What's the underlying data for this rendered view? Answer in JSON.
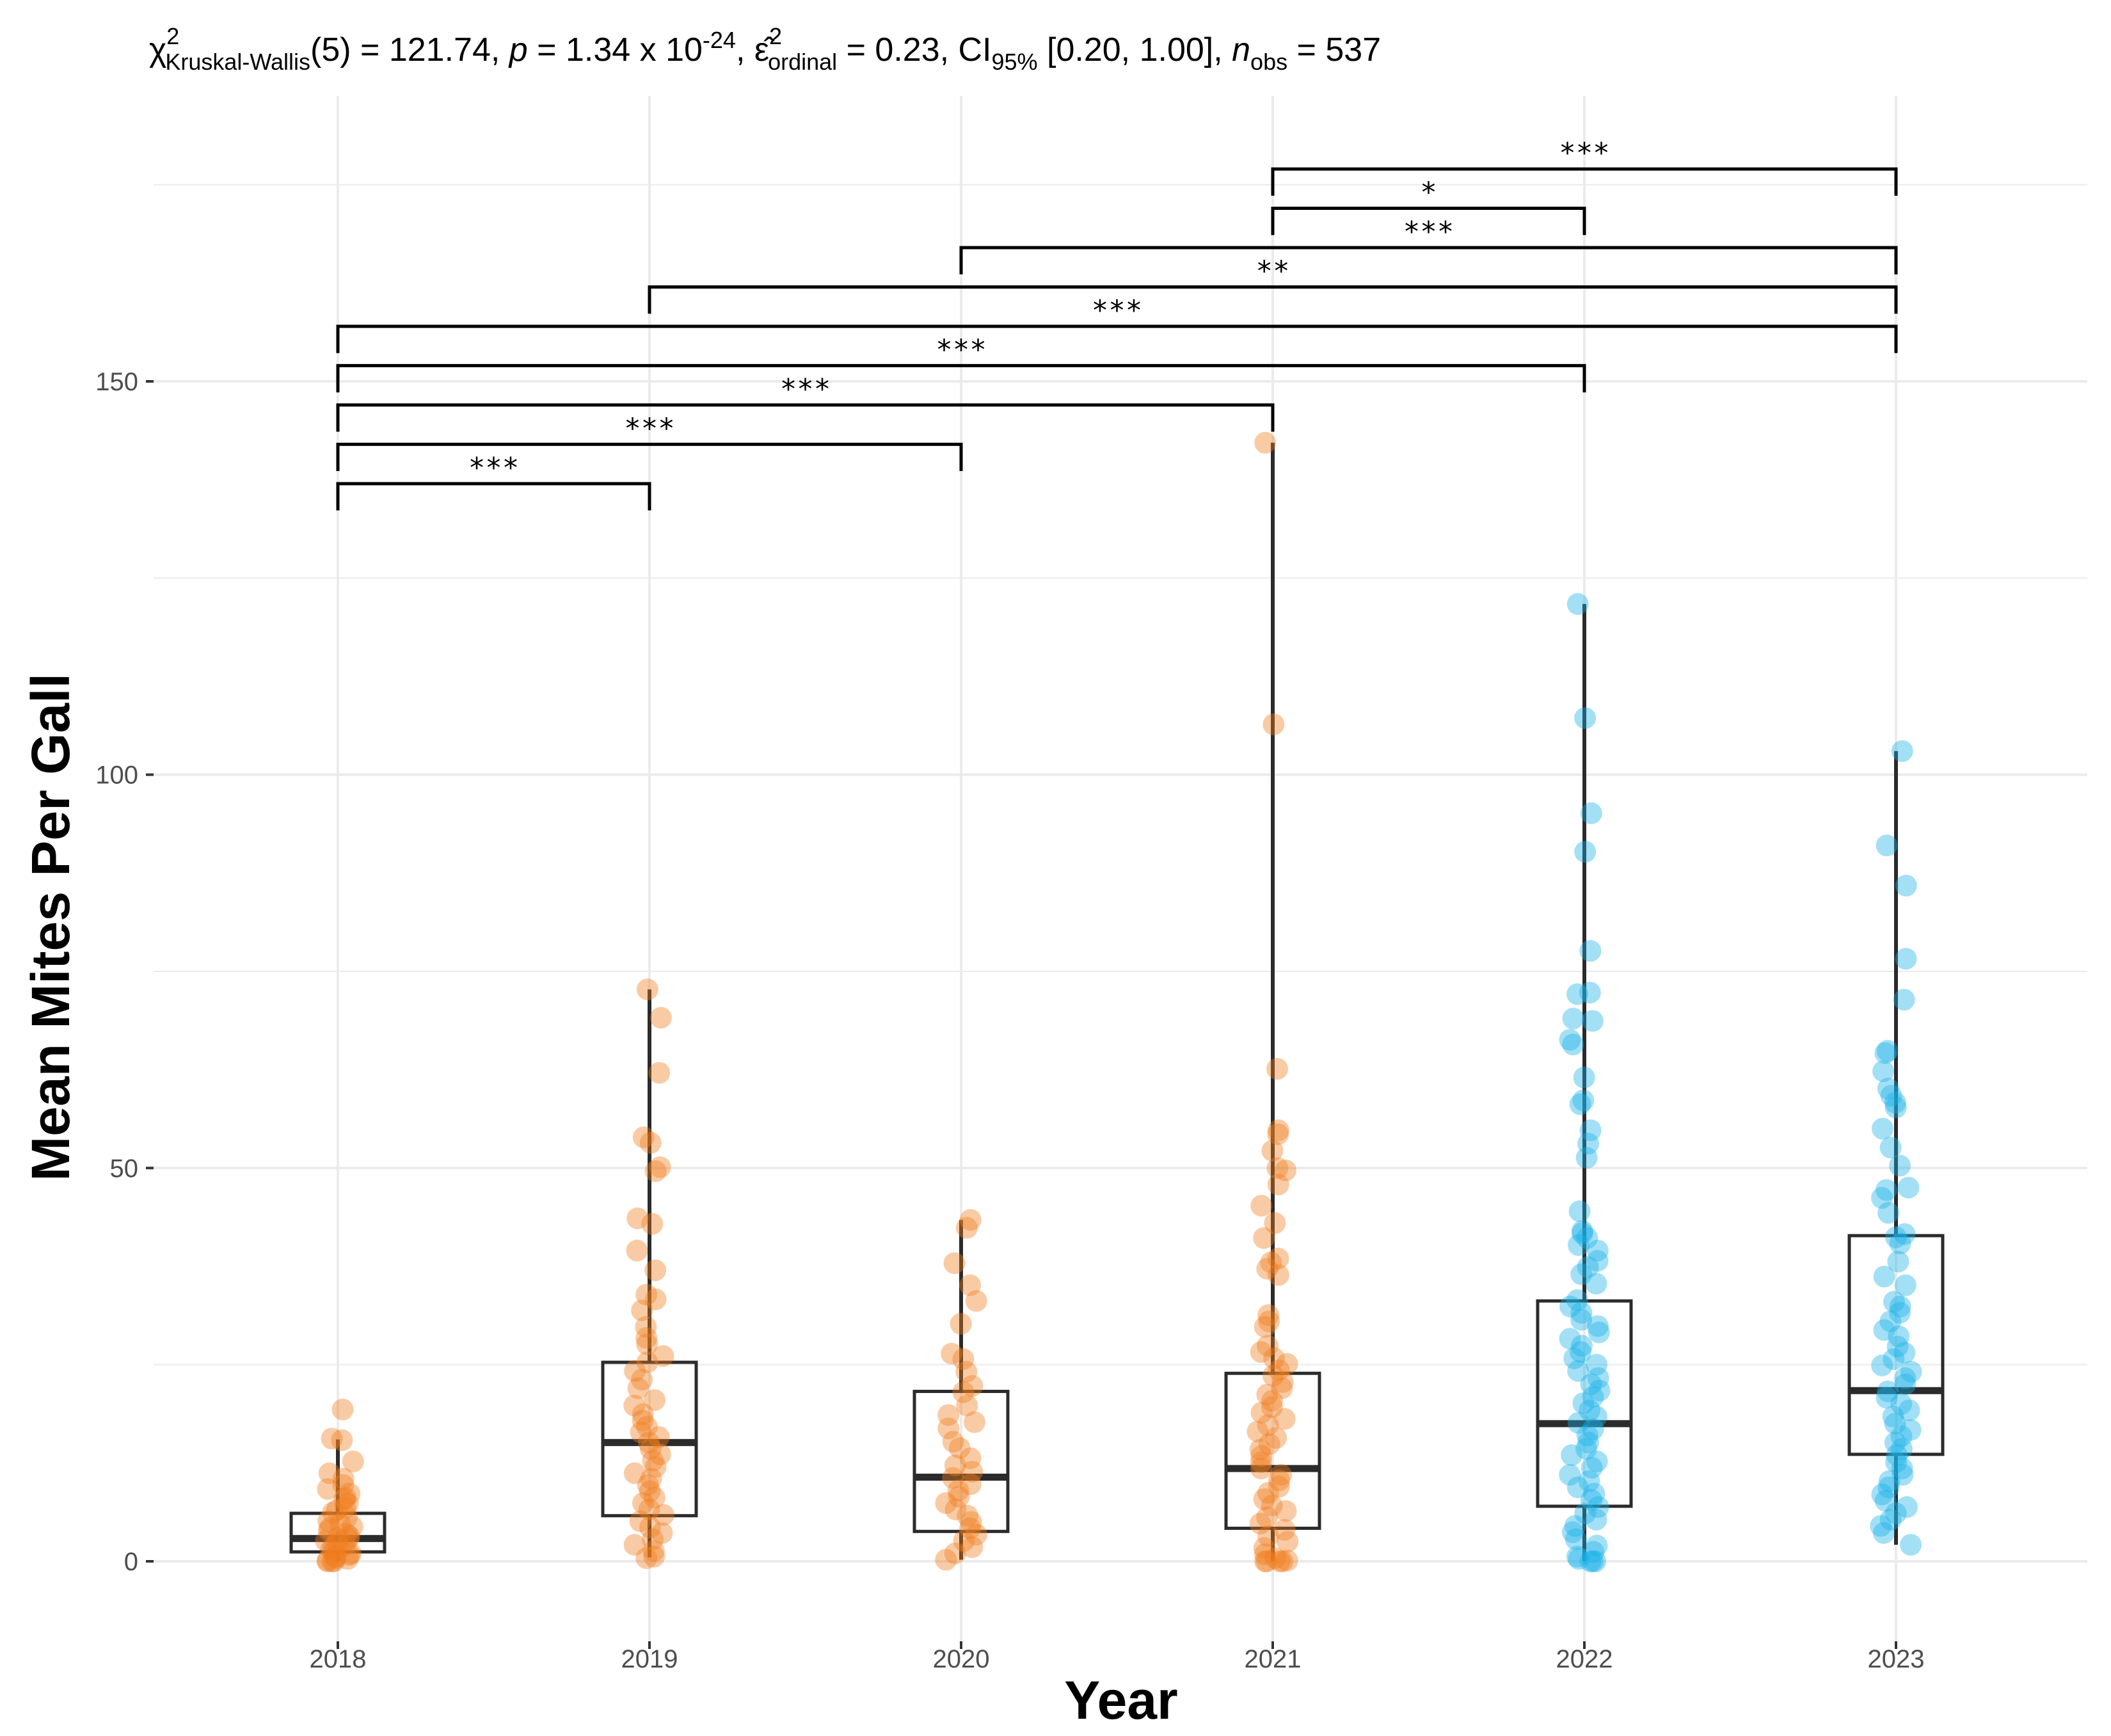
{
  "chart_data": {
    "type": "box",
    "subtitle": {
      "chi": "χ",
      "chi_sup": "2",
      "chi_sub": "Kruskal-Wallis",
      "df_stat": "(5) = 121.74, ",
      "p_sym": "p",
      "p_val": " = 1.34 x 10",
      "p_exp": "-24",
      "sep1": ", ",
      "eps": "ε̂",
      "eps_sup": "2",
      "eps_sub": "ordinal",
      "eps_val": " = 0.23, CI",
      "ci_sub": "95%",
      "ci_val": " [0.20, 1.00], ",
      "n_sym": "n",
      "n_sub": "obs",
      "n_val": " = 537"
    },
    "xlabel": "Year",
    "ylabel": "Mean Mites Per Gall",
    "ylim": [
      -9,
      185
    ],
    "yticks": [
      0,
      50,
      100,
      150
    ],
    "categories": [
      "2018",
      "2019",
      "2020",
      "2021",
      "2022",
      "2023"
    ],
    "boxes": [
      {
        "year": "2018",
        "whisker_low": 0,
        "q1": 1.2,
        "median": 2.9,
        "q3": 6.1,
        "whisker_high": 15.5,
        "color": "#ef7d1e"
      },
      {
        "year": "2019",
        "whisker_low": 0.5,
        "q1": 5.8,
        "median": 15.1,
        "q3": 25.3,
        "whisker_high": 72.7,
        "color": "#ef7d1e"
      },
      {
        "year": "2020",
        "whisker_low": 0.2,
        "q1": 3.8,
        "median": 10.7,
        "q3": 21.6,
        "whisker_high": 43.4,
        "color": "#ef7d1e"
      },
      {
        "year": "2021",
        "whisker_low": 0,
        "q1": 4.2,
        "median": 11.8,
        "q3": 23.9,
        "whisker_high": 142.2,
        "color": "#ef7d1e"
      },
      {
        "year": "2022",
        "whisker_low": 0,
        "q1": 7.0,
        "median": 17.5,
        "q3": 33.1,
        "whisker_high": 121.7,
        "color": "#1ab2e8"
      },
      {
        "year": "2023",
        "whisker_low": 2.1,
        "q1": 13.6,
        "median": 21.7,
        "q3": 41.4,
        "whisker_high": 103.0,
        "color": "#1ab2e8"
      }
    ],
    "points": {
      "2018": [
        19.3,
        15.6,
        15.4,
        12.7,
        10.5,
        9.7,
        9.2,
        8.6,
        7.9,
        7.3,
        6.8,
        6.2,
        5.6,
        5.1,
        4.7,
        4.2,
        3.9,
        3.5,
        3.2,
        2.9,
        2.6,
        2.3,
        2.0,
        1.8,
        1.5,
        1.2,
        1.0,
        0.8,
        0.6,
        0.4,
        0.3,
        0.1,
        0.0,
        0.0,
        0.0,
        3.0,
        4.4,
        6.5,
        8.1,
        11.2
      ],
      "2019": [
        72.7,
        69.1,
        62.1,
        53.9,
        53.2,
        50.1,
        49.6,
        43.6,
        42.9,
        39.5,
        37.0,
        33.9,
        33.3,
        31.9,
        29.8,
        28.4,
        27.6,
        26.1,
        25.3,
        24.2,
        23.1,
        22.0,
        20.5,
        19.8,
        18.7,
        17.9,
        17.1,
        16.4,
        15.8,
        15.1,
        14.3,
        13.6,
        12.8,
        12.0,
        11.2,
        10.5,
        9.7,
        8.9,
        8.1,
        7.4,
        6.6,
        5.9,
        5.1,
        4.3,
        3.6,
        2.8,
        2.1,
        1.3,
        0.6,
        0.4
      ],
      "2020": [
        43.4,
        42.4,
        37.9,
        35.1,
        33.1,
        30.2,
        26.4,
        25.7,
        24.1,
        22.3,
        21.5,
        19.8,
        18.6,
        17.7,
        16.9,
        15.2,
        14.4,
        13.1,
        12.2,
        11.4,
        10.6,
        9.8,
        9.0,
        8.2,
        7.4,
        6.6,
        5.8,
        5.0,
        4.2,
        3.4,
        2.6,
        1.8,
        1.0,
        0.2
      ],
      "2021": [
        142.2,
        106.4,
        62.6,
        54.8,
        54.3,
        52.2,
        50.0,
        49.7,
        47.9,
        45.2,
        43.0,
        41.1,
        38.5,
        38.0,
        37.2,
        36.4,
        31.3,
        30.5,
        29.8,
        27.4,
        26.6,
        25.8,
        25.1,
        24.3,
        23.6,
        22.8,
        22.0,
        21.2,
        20.4,
        19.6,
        18.9,
        18.1,
        17.3,
        16.5,
        15.7,
        14.9,
        14.2,
        13.4,
        12.6,
        11.8,
        11.0,
        10.3,
        9.5,
        8.7,
        7.9,
        7.1,
        6.4,
        5.6,
        4.8,
        4.0,
        3.2,
        2.5,
        1.7,
        0.9,
        0.4,
        0.1,
        0.0,
        0.0,
        0.0,
        0.0
      ],
      "2022": [
        121.7,
        107.2,
        95.1,
        90.2,
        77.6,
        72.3,
        72.1,
        69.0,
        68.7,
        66.3,
        65.7,
        61.5,
        58.6,
        58.1,
        54.8,
        53.1,
        51.3,
        44.5,
        42.0,
        41.7,
        41.1,
        40.2,
        39.5,
        38.2,
        37.4,
        36.5,
        35.3,
        33.2,
        32.4,
        31.6,
        30.7,
        29.9,
        29.1,
        28.3,
        27.4,
        26.6,
        25.8,
        25.0,
        24.2,
        23.3,
        22.5,
        21.7,
        20.9,
        20.1,
        19.2,
        18.4,
        17.6,
        16.8,
        16.0,
        15.1,
        14.3,
        13.5,
        12.7,
        11.9,
        11.0,
        10.2,
        9.4,
        8.6,
        7.8,
        6.9,
        6.1,
        5.3,
        4.5,
        3.7,
        2.8,
        2.0,
        1.2,
        0.6,
        0.3,
        0.0,
        0.0,
        0.0
      ],
      "2023": [
        103.0,
        91.0,
        85.9,
        76.6,
        71.4,
        64.9,
        64.6,
        62.3,
        60.1,
        59.2,
        58.3,
        57.7,
        55.0,
        52.6,
        50.3,
        47.5,
        47.2,
        46.2,
        44.3,
        41.6,
        41.2,
        40.4,
        38.1,
        36.2,
        35.1,
        33.0,
        32.4,
        31.6,
        30.5,
        29.4,
        28.6,
        27.3,
        26.5,
        25.7,
        24.9,
        24.1,
        23.3,
        22.5,
        21.6,
        20.8,
        20.0,
        19.2,
        18.4,
        17.5,
        16.7,
        15.9,
        15.1,
        14.3,
        13.5,
        12.6,
        11.8,
        11.0,
        10.2,
        9.4,
        8.5,
        7.7,
        6.9,
        6.1,
        5.3,
        4.5,
        3.6,
        2.1
      ]
    },
    "comparisons": [
      {
        "from": "2018",
        "to": "2019",
        "label": "***",
        "y": 137
      },
      {
        "from": "2018",
        "to": "2020",
        "label": "***",
        "y": 142
      },
      {
        "from": "2018",
        "to": "2021",
        "label": "***",
        "y": 147
      },
      {
        "from": "2018",
        "to": "2022",
        "label": "***",
        "y": 152
      },
      {
        "from": "2018",
        "to": "2023",
        "label": "***",
        "y": 157
      },
      {
        "from": "2019",
        "to": "2023",
        "label": "**",
        "y": 162
      },
      {
        "from": "2020",
        "to": "2023",
        "label": "***",
        "y": 167
      },
      {
        "from": "2021",
        "to": "2022",
        "label": "*",
        "y": 172
      },
      {
        "from": "2021",
        "to": "2023",
        "label": "***",
        "y": 177
      }
    ],
    "grid": true,
    "colors": {
      "orange": "#ef7d1e",
      "blue": "#1ab2e8",
      "grid": "#ebebeb",
      "box": "#2b2b2b"
    }
  }
}
